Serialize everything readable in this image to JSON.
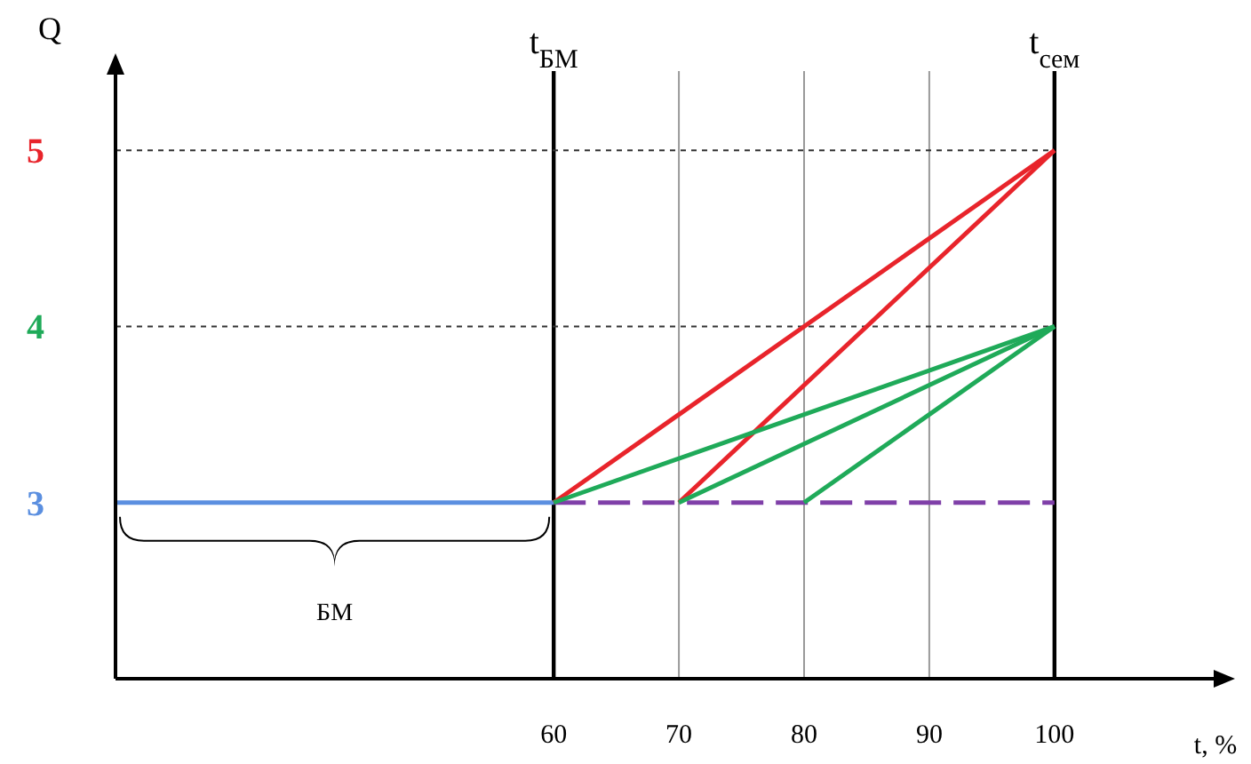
{
  "chart_data": {
    "type": "line",
    "xlabel": "t, %",
    "ylabel": "Q",
    "xlim": [
      25,
      113
    ],
    "ylim": [
      2,
      5.45
    ],
    "xticks": [
      60,
      70,
      80,
      90,
      100
    ],
    "yticks": [
      3,
      4,
      5
    ],
    "grid": false,
    "series": [
      {
        "color": "#5b8fe0",
        "x": [
          25,
          60
        ],
        "values": [
          3,
          3
        ]
      },
      {
        "color": "#7f3fa8",
        "x": [
          60,
          100
        ],
        "values": [
          3,
          3
        ],
        "line_style": "dashed"
      },
      {
        "color": "#e8242b",
        "x": [
          60,
          100
        ],
        "values": [
          3,
          5
        ]
      },
      {
        "color": "#e8242b",
        "x": [
          70,
          100
        ],
        "values": [
          3,
          5
        ]
      },
      {
        "color": "#1faa59",
        "x": [
          60,
          100
        ],
        "values": [
          3,
          4
        ]
      },
      {
        "color": "#1faa59",
        "x": [
          70,
          100
        ],
        "values": [
          3,
          4
        ]
      },
      {
        "color": "#1faa59",
        "x": [
          80,
          100
        ],
        "values": [
          3,
          4
        ]
      }
    ],
    "ref_lines": [
      {
        "axis": "x",
        "value": 60,
        "label": "t$_{БМ}$"
      },
      {
        "axis": "x",
        "value": 100,
        "label": "t$_{сем}$"
      },
      {
        "axis": "x",
        "value": 70,
        "color": "#999999"
      },
      {
        "axis": "x",
        "value": 80,
        "color": "#999999"
      },
      {
        "axis": "x",
        "value": 90,
        "color": "#999999"
      },
      {
        "axis": "y",
        "value": 4,
        "line_style": "dotted"
      },
      {
        "axis": "y",
        "value": 5,
        "line_style": "dotted"
      }
    ],
    "annotations": [
      "БМ"
    ]
  }
}
